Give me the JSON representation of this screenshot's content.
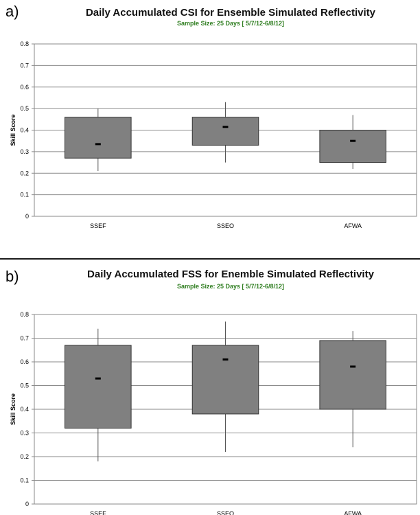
{
  "chart_data": [
    {
      "panel_label": "a)",
      "type": "boxplot",
      "title": "Daily Accumulated CSI for Ensemble Simulated Reflectivity",
      "subtitle": "Sample Size: 25 Days [ 5/7/12-6/8/12]",
      "xlabel": "",
      "ylabel": "Skill Score",
      "ylim": [
        0,
        0.8
      ],
      "yticks": [
        "0",
        "0.1",
        "0.2",
        "0.3",
        "0.4",
        "0.5",
        "0.6",
        "0.7",
        "0.8"
      ],
      "grid": true,
      "categories": [
        "SSEF",
        "SSEO",
        "AFWA"
      ],
      "whisker_low": [
        0.21,
        0.25,
        0.22
      ],
      "box_low": [
        0.27,
        0.33,
        0.25
      ],
      "median": [
        0.335,
        0.415,
        0.35
      ],
      "box_high": [
        0.46,
        0.46,
        0.4
      ],
      "whisker_high": [
        0.5,
        0.53,
        0.47
      ],
      "box_color": "#808080"
    },
    {
      "panel_label": "b)",
      "type": "boxplot",
      "title": "Daily Accumulated FSS for Enemble Simulated Reflectivity",
      "subtitle": "Sample Size: 25 Days [ 5/7/12-6/8/12]",
      "xlabel": "",
      "ylabel": "Skill Score",
      "ylim": [
        0,
        0.8
      ],
      "yticks": [
        "0",
        "0.1",
        "0.2",
        "0.3",
        "0.4",
        "0.5",
        "0.6",
        "0.7",
        "0.8"
      ],
      "grid": true,
      "categories": [
        "SSEF",
        "SSEO",
        "AFWA"
      ],
      "whisker_low": [
        0.18,
        0.22,
        0.24
      ],
      "box_low": [
        0.32,
        0.38,
        0.4
      ],
      "median": [
        0.53,
        0.61,
        0.58
      ],
      "box_high": [
        0.67,
        0.67,
        0.69
      ],
      "whisker_high": [
        0.74,
        0.77,
        0.73
      ],
      "box_color": "#808080"
    }
  ]
}
